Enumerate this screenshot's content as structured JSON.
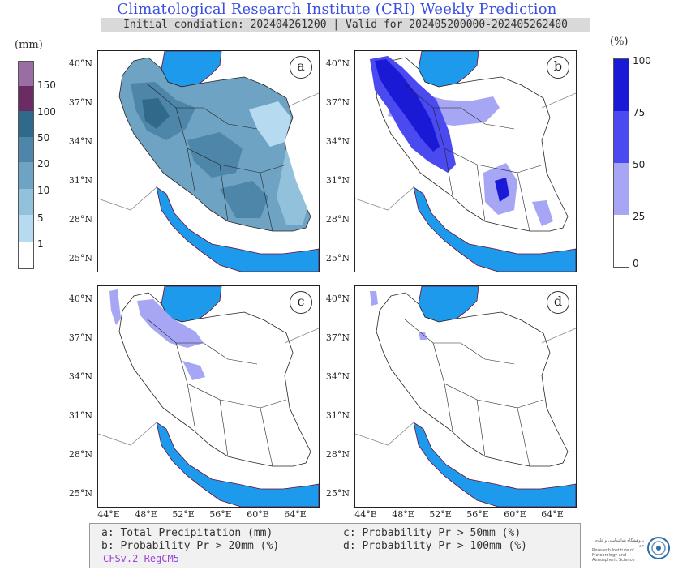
{
  "header": {
    "title": "Climatological Research Institute (CRI) Weekly Prediction",
    "subtitle": "Initial condiation: 202404261200 | Valid for 202405200000-202405262400"
  },
  "colorbar_left": {
    "unit": "(mm)",
    "ticks": [
      "150",
      "100",
      "50",
      "20",
      "10",
      "5",
      "1"
    ],
    "colors": [
      "#9b6ea3",
      "#6b2c63",
      "#2f6a8a",
      "#4d86a8",
      "#6fa3c4",
      "#92c1dc",
      "#b6daf0",
      "#ffffff"
    ]
  },
  "colorbar_right": {
    "unit": "(%)",
    "ticks": [
      "100",
      "75",
      "50",
      "25",
      "0"
    ],
    "colors": [
      "#1a1ad6",
      "#4a4af0",
      "#a6a6f5",
      "#ffffff"
    ]
  },
  "panels": [
    {
      "id": "a",
      "label": "a"
    },
    {
      "id": "b",
      "label": "b"
    },
    {
      "id": "c",
      "label": "c"
    },
    {
      "id": "d",
      "label": "d"
    }
  ],
  "axes": {
    "lat_labels": [
      "40°N",
      "37°N",
      "34°N",
      "31°N",
      "28°N",
      "25°N"
    ],
    "lon_labels": [
      "44°E",
      "48°E",
      "52°E",
      "56°E",
      "60°E",
      "64°E"
    ]
  },
  "legend": {
    "a": "a: Total Precipitation (mm)",
    "b": "b: Probability Pr > 20mm (%)",
    "c": "c: Probability Pr > 50mm (%)",
    "d": "d: Probability Pr > 100mm (%)",
    "model": "CFSv.2-RegCM5"
  },
  "logo": {
    "text_line1": "پژوهشگاه هواشناسی و علوم جو",
    "text_line2": "Research Institute of Meteorology and Atmospheric Science"
  },
  "colors": {
    "sea": "#1e9aec",
    "title": "#3a4fe0"
  }
}
